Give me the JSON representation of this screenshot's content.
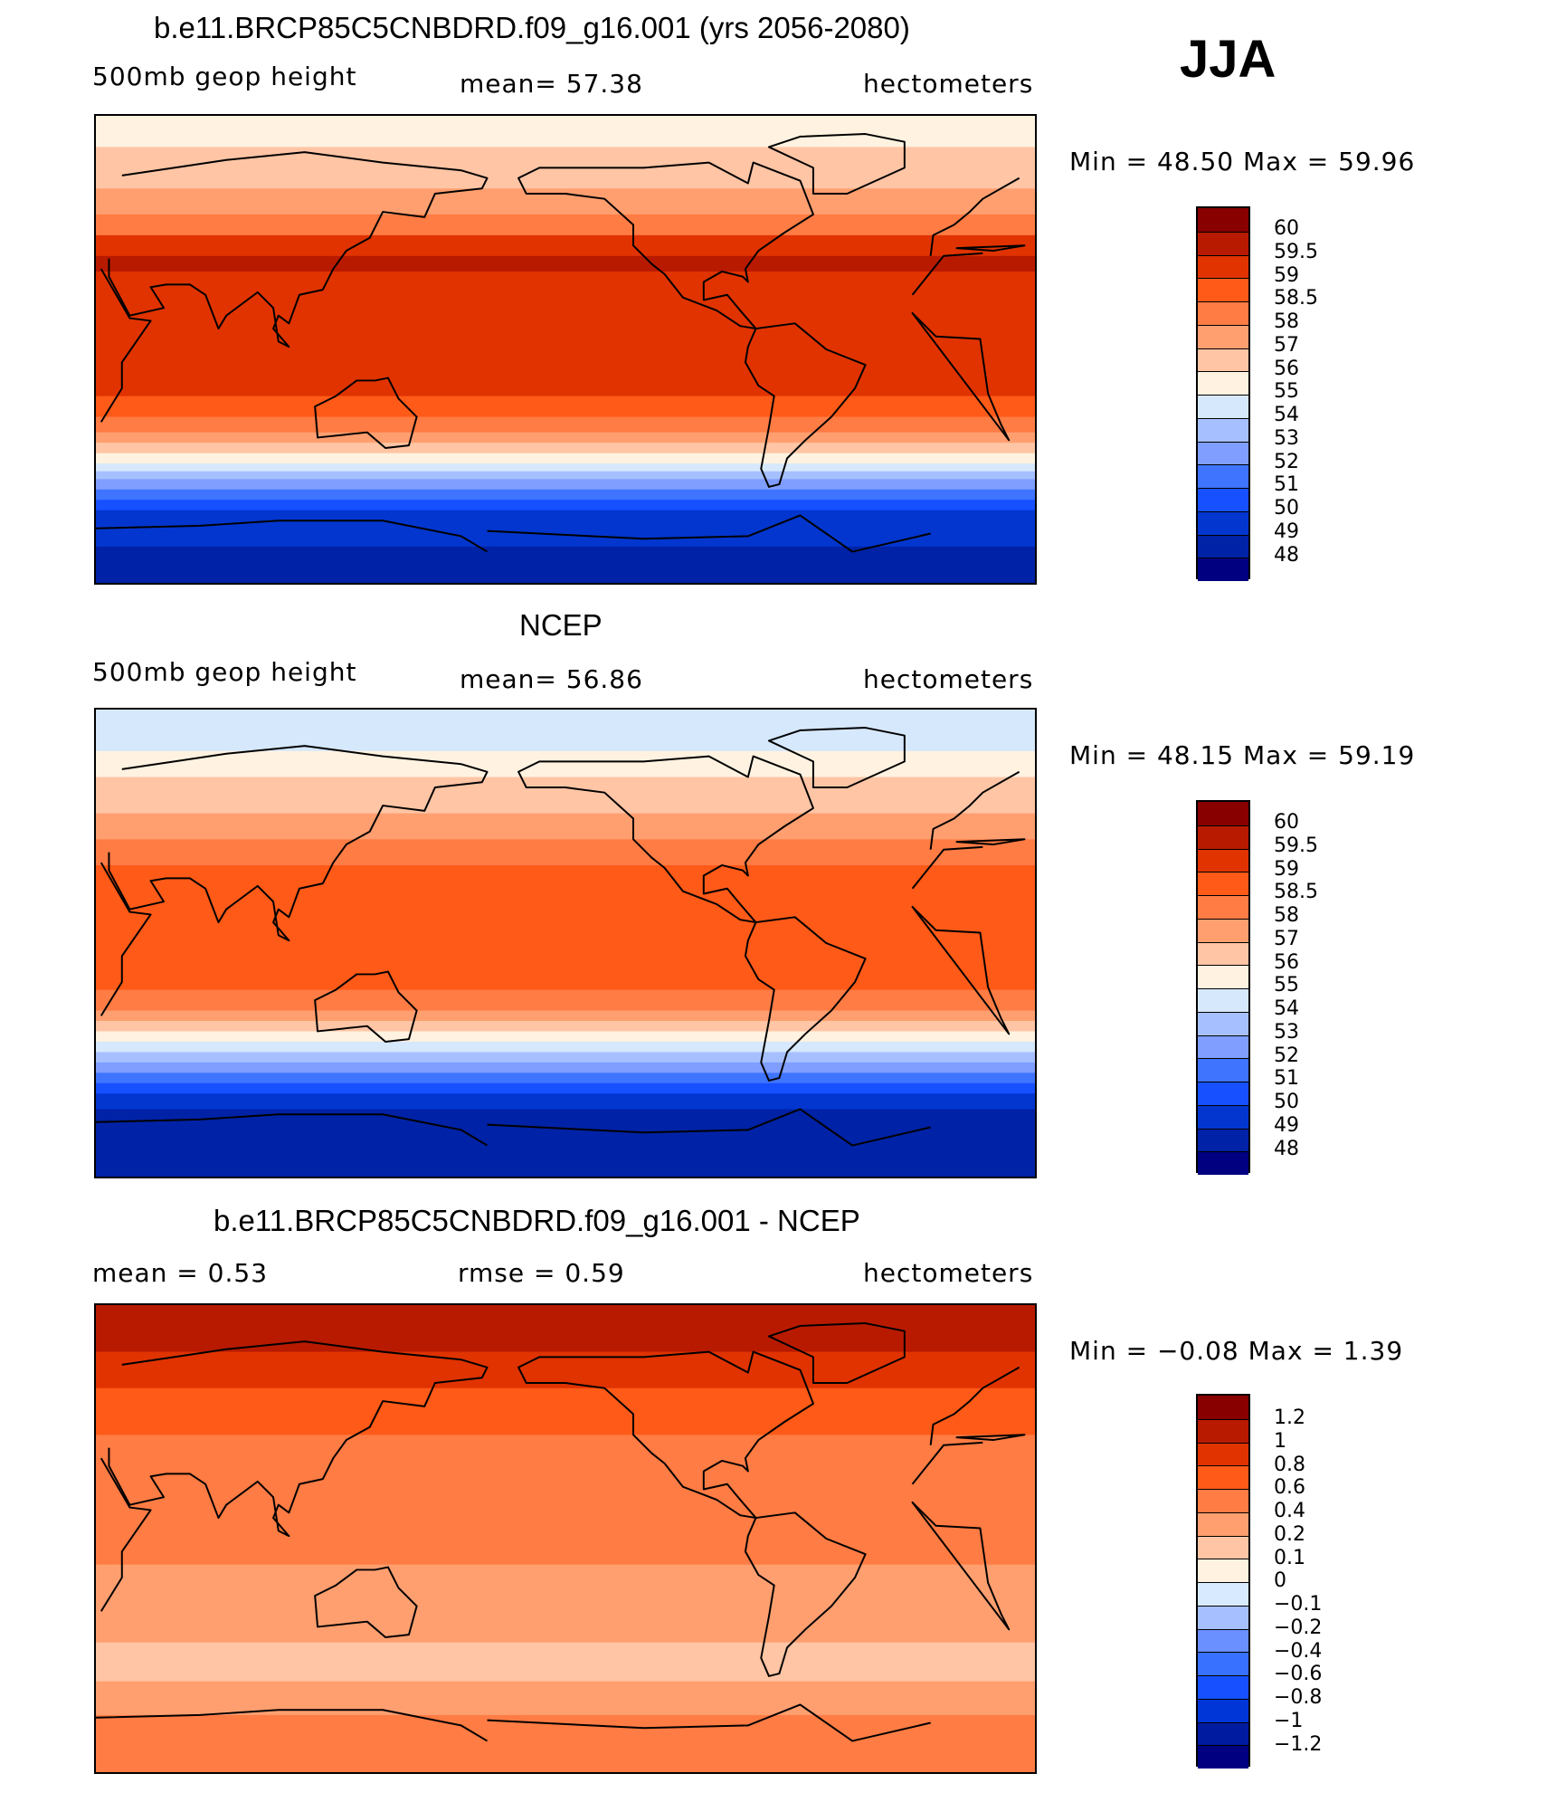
{
  "season": "JJA",
  "units": "hectometers",
  "palette": {
    "abs": [
      "#000080",
      "#0022a6",
      "#0236cf",
      "#1650ff",
      "#3f74ff",
      "#7f9eff",
      "#a6c0ff",
      "#d6e8fc",
      "#fff2e0",
      "#ffc5a5",
      "#ff9f70",
      "#ff7c44",
      "#ff5a18",
      "#e03300",
      "#b81a00",
      "#880000"
    ],
    "diff": [
      "#000080",
      "#001aa0",
      "#0036d8",
      "#1650ff",
      "#3870ff",
      "#6a90ff",
      "#a6c0ff",
      "#d8eaff",
      "#fff2e0",
      "#ffc5a5",
      "#ff9f70",
      "#ff7c44",
      "#ff5a18",
      "#e03300",
      "#b81a00",
      "#880000"
    ],
    "land_outline": "#000000"
  },
  "panels": [
    {
      "title": "b.e11.BRCP85C5CNBDRD.f09_g16.001 (yrs 2056-2080)",
      "left_label": "500mb geop height",
      "mid_label": "mean=   57.38",
      "right_label": "hectometers",
      "minmax": "Min =   48.50  Max =   59.96",
      "colorbar_labels": [
        "60",
        "59.5",
        "59",
        "58.5",
        "58",
        "57",
        "56",
        "55",
        "54",
        "53",
        "52",
        "51",
        "50",
        "49",
        "48"
      ],
      "bands": [
        {
          "lat": 90,
          "level": 8
        },
        {
          "lat": 78,
          "level": 9
        },
        {
          "lat": 62,
          "level": 10
        },
        {
          "lat": 52,
          "level": 11
        },
        {
          "lat": 44,
          "level": 13
        },
        {
          "lat": 36,
          "level": 14
        },
        {
          "lat": 30,
          "level": 13
        },
        {
          "lat": -18,
          "level": 12
        },
        {
          "lat": -26,
          "level": 11
        },
        {
          "lat": -32,
          "level": 10
        },
        {
          "lat": -36,
          "level": 9
        },
        {
          "lat": -40,
          "level": 8
        },
        {
          "lat": -44,
          "level": 7
        },
        {
          "lat": -47,
          "level": 6
        },
        {
          "lat": -50,
          "level": 5
        },
        {
          "lat": -54,
          "level": 4
        },
        {
          "lat": -58,
          "level": 3
        },
        {
          "lat": -62,
          "level": 2
        },
        {
          "lat": -76,
          "level": 1
        }
      ]
    },
    {
      "title": "NCEP",
      "left_label": "500mb geop height",
      "mid_label": "mean=   56.86",
      "right_label": "hectometers",
      "minmax": "Min =   48.15  Max =   59.19",
      "colorbar_labels": [
        "60",
        "59.5",
        "59",
        "58.5",
        "58",
        "57",
        "56",
        "55",
        "54",
        "53",
        "52",
        "51",
        "50",
        "49",
        "48"
      ],
      "bands": [
        {
          "lat": 90,
          "level": 7
        },
        {
          "lat": 74,
          "level": 8
        },
        {
          "lat": 64,
          "level": 9
        },
        {
          "lat": 50,
          "level": 10
        },
        {
          "lat": 40,
          "level": 11
        },
        {
          "lat": 30,
          "level": 12
        },
        {
          "lat": -18,
          "level": 11
        },
        {
          "lat": -26,
          "level": 10
        },
        {
          "lat": -30,
          "level": 9
        },
        {
          "lat": -34,
          "level": 8
        },
        {
          "lat": -38,
          "level": 7
        },
        {
          "lat": -42,
          "level": 6
        },
        {
          "lat": -46,
          "level": 5
        },
        {
          "lat": -50,
          "level": 4
        },
        {
          "lat": -54,
          "level": 3
        },
        {
          "lat": -58,
          "level": 2
        },
        {
          "lat": -64,
          "level": 1
        },
        {
          "lat": -90,
          "level": 1
        }
      ]
    },
    {
      "title": "b.e11.BRCP85C5CNBDRD.f09_g16.001 - NCEP",
      "left_label": "mean =     0.53",
      "mid_label": "rmse =     0.59",
      "right_label": "hectometers",
      "minmax": "Min =   −0.08  Max =     1.39",
      "colorbar_labels": [
        "1.2",
        "1",
        "0.8",
        "0.6",
        "0.4",
        "0.2",
        "0.1",
        "0",
        "−0.1",
        "−0.2",
        "−0.4",
        "−0.6",
        "−0.8",
        "−1",
        "−1.2"
      ],
      "bands": [
        {
          "lat": 90,
          "level": 14
        },
        {
          "lat": 72,
          "level": 13
        },
        {
          "lat": 58,
          "level": 12
        },
        {
          "lat": 40,
          "level": 11
        },
        {
          "lat": 10,
          "level": 11
        },
        {
          "lat": -10,
          "level": 10
        },
        {
          "lat": -40,
          "level": 9
        },
        {
          "lat": -55,
          "level": 10
        },
        {
          "lat": -68,
          "level": 11
        }
      ]
    }
  ]
}
